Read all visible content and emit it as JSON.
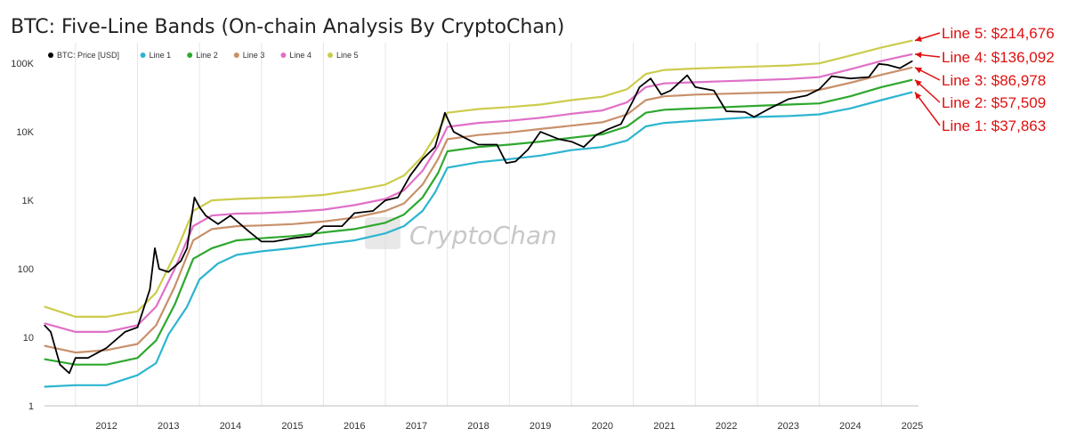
{
  "chart_data": {
    "type": "line",
    "title": "BTC: Five-Line Bands (On-chain Analysis By CryptoChan)",
    "xlabel": "",
    "ylabel": "",
    "y_scale": "log",
    "ylim": [
      1,
      200000
    ],
    "xlim": [
      2011.5,
      2025.6
    ],
    "grid": "vertical",
    "legend_position": "top-left",
    "y_ticks": [
      {
        "value": 1,
        "label": "1"
      },
      {
        "value": 10,
        "label": "10"
      },
      {
        "value": 100,
        "label": "100"
      },
      {
        "value": 1000,
        "label": "1K"
      },
      {
        "value": 10000,
        "label": "10K"
      },
      {
        "value": 100000,
        "label": "100K"
      }
    ],
    "x_ticks": [
      "2012",
      "2013",
      "2014",
      "2015",
      "2016",
      "2017",
      "2018",
      "2019",
      "2020",
      "2021",
      "2022",
      "2023",
      "2024",
      "2025"
    ],
    "watermark": "CryptoChan",
    "series": [
      {
        "name": "BTC: Price [USD]",
        "color": "#000000",
        "x": [
          2011.5,
          2011.6,
          2011.75,
          2011.9,
          2012.0,
          2012.2,
          2012.5,
          2012.8,
          2013.0,
          2013.2,
          2013.28,
          2013.35,
          2013.5,
          2013.7,
          2013.8,
          2013.92,
          2014.0,
          2014.1,
          2014.3,
          2014.5,
          2014.8,
          2015.0,
          2015.2,
          2015.5,
          2015.8,
          2016.0,
          2016.3,
          2016.5,
          2016.8,
          2017.0,
          2017.2,
          2017.4,
          2017.6,
          2017.8,
          2017.96,
          2018.1,
          2018.3,
          2018.5,
          2018.8,
          2018.95,
          2019.1,
          2019.3,
          2019.5,
          2019.8,
          2020.0,
          2020.2,
          2020.4,
          2020.6,
          2020.8,
          2021.0,
          2021.1,
          2021.28,
          2021.45,
          2021.6,
          2021.87,
          2022.0,
          2022.3,
          2022.5,
          2022.8,
          2022.95,
          2023.2,
          2023.5,
          2023.8,
          2024.0,
          2024.2,
          2024.5,
          2024.8,
          2024.96,
          2025.1,
          2025.3,
          2025.5
        ],
        "y": [
          15,
          12,
          4,
          3,
          5,
          5,
          7,
          12,
          14,
          50,
          200,
          100,
          90,
          130,
          200,
          1100,
          800,
          600,
          450,
          600,
          350,
          250,
          250,
          280,
          300,
          420,
          420,
          650,
          700,
          1000,
          1100,
          2300,
          4000,
          6000,
          19000,
          10000,
          8000,
          6500,
          6500,
          3500,
          3700,
          5500,
          10000,
          7800,
          7200,
          6000,
          9000,
          11000,
          13000,
          29000,
          45000,
          60000,
          35000,
          40000,
          67000,
          45000,
          40000,
          20000,
          19500,
          16500,
          22000,
          30000,
          34000,
          42000,
          65000,
          60000,
          63000,
          98000,
          95000,
          85000,
          108000
        ]
      },
      {
        "name": "Line 1",
        "color": "#2cb5d0",
        "x": [
          2011.5,
          2012.0,
          2012.5,
          2013.0,
          2013.3,
          2013.5,
          2013.8,
          2014.0,
          2014.3,
          2014.6,
          2015.0,
          2015.5,
          2016.0,
          2016.5,
          2017.0,
          2017.3,
          2017.6,
          2017.8,
          2018.0,
          2018.5,
          2019.0,
          2019.5,
          2020.0,
          2020.5,
          2020.9,
          2021.2,
          2021.5,
          2022.0,
          2022.5,
          2023.0,
          2023.5,
          2024.0,
          2024.5,
          2025.0,
          2025.5
        ],
        "y": [
          1.9,
          2,
          2,
          2.8,
          4.2,
          11,
          28,
          70,
          120,
          160,
          180,
          200,
          230,
          260,
          330,
          420,
          700,
          1300,
          3000,
          3600,
          4000,
          4500,
          5400,
          6000,
          7500,
          12000,
          13500,
          14500,
          15500,
          16500,
          17000,
          18000,
          22000,
          29000,
          37863
        ]
      },
      {
        "name": "Line 2",
        "color": "#2ea82e",
        "x": [
          2011.5,
          2012.0,
          2012.5,
          2013.0,
          2013.3,
          2013.6,
          2013.9,
          2014.2,
          2014.6,
          2015.0,
          2015.5,
          2016.0,
          2016.5,
          2017.0,
          2017.3,
          2017.6,
          2017.85,
          2018.0,
          2018.5,
          2019.0,
          2019.5,
          2020.0,
          2020.5,
          2020.9,
          2021.2,
          2021.5,
          2022.0,
          2022.5,
          2023.0,
          2023.5,
          2024.0,
          2024.5,
          2025.0,
          2025.5
        ],
        "y": [
          4.8,
          4,
          4,
          5,
          9,
          30,
          140,
          200,
          260,
          280,
          300,
          340,
          380,
          470,
          620,
          1100,
          2500,
          5200,
          6000,
          6500,
          7200,
          8200,
          9200,
          12000,
          19000,
          21000,
          22000,
          23000,
          24000,
          25000,
          26000,
          33000,
          45000,
          57509
        ]
      },
      {
        "name": "Line 3",
        "color": "#c8906a",
        "x": [
          2011.5,
          2012.0,
          2012.5,
          2013.0,
          2013.3,
          2013.6,
          2013.9,
          2014.2,
          2014.6,
          2015.0,
          2015.5,
          2016.0,
          2016.5,
          2017.0,
          2017.3,
          2017.6,
          2017.85,
          2018.0,
          2018.5,
          2019.0,
          2019.5,
          2020.0,
          2020.5,
          2020.9,
          2021.2,
          2021.5,
          2022.0,
          2022.5,
          2023.0,
          2023.5,
          2024.0,
          2024.5,
          2025.0,
          2025.5
        ],
        "y": [
          7.5,
          6,
          6.5,
          8,
          15,
          55,
          260,
          380,
          420,
          430,
          450,
          490,
          560,
          700,
          900,
          1700,
          4000,
          7800,
          9000,
          9800,
          11000,
          12300,
          13800,
          18000,
          29000,
          33000,
          35000,
          36000,
          37000,
          38000,
          41000,
          52000,
          68000,
          86978
        ]
      },
      {
        "name": "Line 4",
        "color": "#e070c8",
        "x": [
          2011.5,
          2012.0,
          2012.5,
          2013.0,
          2013.3,
          2013.6,
          2013.9,
          2014.2,
          2014.6,
          2015.0,
          2015.5,
          2016.0,
          2016.5,
          2017.0,
          2017.3,
          2017.6,
          2017.85,
          2018.0,
          2018.5,
          2019.0,
          2019.5,
          2020.0,
          2020.5,
          2020.9,
          2021.2,
          2021.5,
          2022.0,
          2022.5,
          2023.0,
          2023.5,
          2024.0,
          2024.5,
          2025.0,
          2025.5
        ],
        "y": [
          16,
          12,
          12,
          15,
          28,
          100,
          420,
          600,
          640,
          650,
          680,
          730,
          850,
          1050,
          1400,
          2700,
          6200,
          11800,
          13500,
          14500,
          16000,
          18300,
          20500,
          27000,
          45000,
          51000,
          53000,
          55000,
          57000,
          59000,
          63000,
          82000,
          108000,
          136092
        ]
      },
      {
        "name": "Line 5",
        "color": "#cccc4c",
        "x": [
          2011.5,
          2012.0,
          2012.5,
          2013.0,
          2013.3,
          2013.6,
          2013.9,
          2014.2,
          2014.6,
          2015.0,
          2015.5,
          2016.0,
          2016.5,
          2017.0,
          2017.3,
          2017.6,
          2017.85,
          2018.0,
          2018.5,
          2019.0,
          2019.5,
          2020.0,
          2020.5,
          2020.9,
          2021.2,
          2021.5,
          2022.0,
          2022.5,
          2023.0,
          2023.5,
          2024.0,
          2024.5,
          2025.0,
          2025.5
        ],
        "y": [
          28,
          20,
          20,
          24,
          45,
          160,
          700,
          1000,
          1050,
          1080,
          1120,
          1200,
          1400,
          1700,
          2300,
          4400,
          10000,
          19000,
          21500,
          23000,
          25000,
          29000,
          32500,
          42000,
          70000,
          80000,
          84000,
          87000,
          90000,
          93000,
          100000,
          130000,
          170000,
          214676
        ]
      }
    ],
    "annotations": [
      {
        "text": "Line 5: $214,676",
        "series": "Line 5",
        "value": 214676
      },
      {
        "text": "Line 4: $136,092",
        "series": "Line 4",
        "value": 136092
      },
      {
        "text": "Line 3: $86,978",
        "series": "Line 3",
        "value": 86978
      },
      {
        "text": "Line 2: $57,509",
        "series": "Line 2",
        "value": 57509
      },
      {
        "text": "Line 1: $37,863",
        "series": "Line 1",
        "value": 37863
      }
    ]
  }
}
